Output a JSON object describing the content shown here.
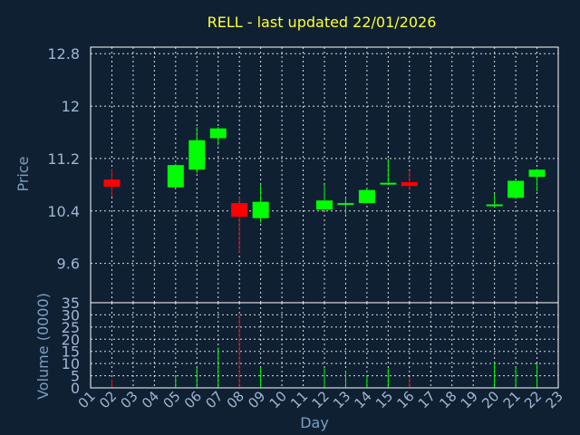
{
  "chart_data": {
    "type": "candlestick",
    "title": "RELL - last updated 22/01/2026",
    "xlabel": "Day",
    "ylabel": "Price",
    "volume_label": "Volume (0000)",
    "x_ticks": [
      "01",
      "02",
      "03",
      "04",
      "05",
      "06",
      "07",
      "08",
      "09",
      "10",
      "11",
      "12",
      "13",
      "14",
      "15",
      "16",
      "17",
      "18",
      "19",
      "20",
      "21",
      "22",
      "23"
    ],
    "price_ticks": [
      "12.8",
      "12",
      "11.2",
      "10.4",
      "9.6"
    ],
    "price_tick_values": [
      12.8,
      12.0,
      11.2,
      10.4,
      9.6
    ],
    "price_ylim": [
      9.0,
      12.9
    ],
    "volume_ticks": [
      "35",
      "30",
      "25",
      "20",
      "15",
      "10",
      "5",
      "0"
    ],
    "volume_tick_values": [
      35,
      30,
      25,
      20,
      15,
      10,
      5,
      0
    ],
    "volume_ylim": [
      0,
      35
    ],
    "grid": true,
    "up_color": "#00ff00",
    "down_color": "#ff0000",
    "candles": [
      {
        "day": 2,
        "open": 10.88,
        "high": 11.04,
        "low": 10.62,
        "close": 10.77,
        "volume": 3.5
      },
      {
        "day": 5,
        "open": 10.76,
        "high": 11.12,
        "low": 10.76,
        "close": 11.1,
        "volume": 4.8
      },
      {
        "day": 6,
        "open": 11.03,
        "high": 11.68,
        "low": 10.98,
        "close": 11.48,
        "volume": 8.5
      },
      {
        "day": 7,
        "open": 11.51,
        "high": 11.68,
        "low": 11.4,
        "close": 11.66,
        "volume": 16.5
      },
      {
        "day": 8,
        "open": 10.52,
        "high": 10.62,
        "low": 9.76,
        "close": 10.31,
        "volume": 30.0
      },
      {
        "day": 9,
        "open": 10.29,
        "high": 10.8,
        "low": 10.22,
        "close": 10.54,
        "volume": 8.5
      },
      {
        "day": 12,
        "open": 10.42,
        "high": 10.8,
        "low": 10.42,
        "close": 10.56,
        "volume": 8.0
      },
      {
        "day": 13,
        "open": 10.5,
        "high": 10.6,
        "low": 10.35,
        "close": 10.52,
        "volume": 7.0
      },
      {
        "day": 14,
        "open": 10.52,
        "high": 10.75,
        "low": 10.52,
        "close": 10.72,
        "volume": 5.0
      },
      {
        "day": 15,
        "open": 10.81,
        "high": 11.2,
        "low": 10.81,
        "close": 10.83,
        "volume": 8.0
      },
      {
        "day": 16,
        "open": 10.84,
        "high": 11.02,
        "low": 10.72,
        "close": 10.78,
        "volume": 4.5
      },
      {
        "day": 20,
        "open": 10.48,
        "high": 10.66,
        "low": 10.46,
        "close": 10.5,
        "volume": 10.5
      },
      {
        "day": 21,
        "open": 10.6,
        "high": 10.86,
        "low": 10.58,
        "close": 10.86,
        "volume": 8.5
      },
      {
        "day": 22,
        "open": 10.92,
        "high": 11.04,
        "low": 10.7,
        "close": 11.03,
        "volume": 10.0
      }
    ]
  }
}
